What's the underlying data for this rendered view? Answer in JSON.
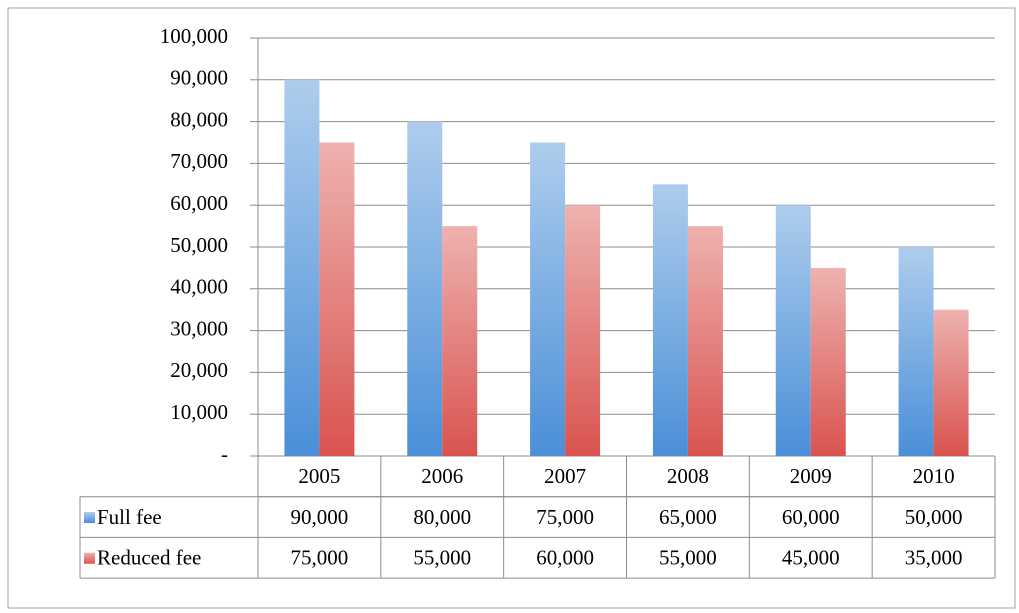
{
  "chart_data": {
    "type": "bar",
    "categories": [
      "2005",
      "2006",
      "2007",
      "2008",
      "2009",
      "2010"
    ],
    "series": [
      {
        "name": "Full fee",
        "color": "#4a8fd8",
        "values": [
          90000,
          80000,
          75000,
          65000,
          60000,
          50000
        ],
        "value_labels": [
          "90,000",
          "80,000",
          "75,000",
          "65,000",
          "60,000",
          "50,000"
        ]
      },
      {
        "name": "Reduced fee",
        "color": "#d9534f",
        "values": [
          75000,
          55000,
          60000,
          55000,
          45000,
          35000
        ],
        "value_labels": [
          "75,000",
          "55,000",
          "60,000",
          "55,000",
          "45,000",
          "35,000"
        ]
      }
    ],
    "ylim": [
      0,
      100000
    ],
    "yticks": [
      {
        "value": 0,
        "label": "-"
      },
      {
        "value": 10000,
        "label": "10,000"
      },
      {
        "value": 20000,
        "label": "20,000"
      },
      {
        "value": 30000,
        "label": "30,000"
      },
      {
        "value": 40000,
        "label": "40,000"
      },
      {
        "value": 50000,
        "label": "50,000"
      },
      {
        "value": 60000,
        "label": "60,000"
      },
      {
        "value": 70000,
        "label": "70,000"
      },
      {
        "value": 80000,
        "label": "80,000"
      },
      {
        "value": 90000,
        "label": "90,000"
      },
      {
        "value": 100000,
        "label": "100,000"
      }
    ],
    "grid": true,
    "data_table": true
  }
}
